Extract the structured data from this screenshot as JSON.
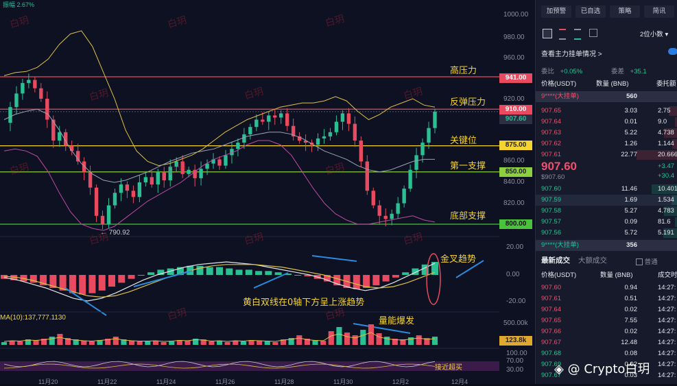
{
  "chart": {
    "top_left_label": "振幅 2.67%",
    "price_axis": [
      "1000.00",
      "980.00",
      "960.00",
      "940.00",
      "920.00",
      "900.00",
      "860.00",
      "840.00",
      "820.00"
    ],
    "price_tags": {
      "high_pressure": "941.00",
      "rebound_pressure": "910.00",
      "current": "907.60",
      "key_level": "875.00",
      "support1": "850.00",
      "bottom_support": "800.00"
    },
    "macd_axis": [
      "20.00",
      "0.00",
      "-20.00"
    ],
    "volume_axis": {
      "top": "500.00k",
      "tag": "123.8k"
    },
    "rsi_axis": [
      "100.00",
      "70.00",
      "30.00"
    ],
    "low_marker": "790.92",
    "annotations": {
      "high_pressure": "高压力",
      "rebound_pressure": "反弹压力",
      "key_level": "关键位",
      "support1": "第一支撑",
      "bottom_support": "底部支撑",
      "golden_cross": "金叉趋势",
      "macd_note": "黄白双线在0轴下方呈上涨趋势",
      "volume_burst": "量能爆发",
      "ma_label": "MA(10):137,777.1130",
      "overbought": "接近超买"
    },
    "watermark": "白玥",
    "brand_watermark": "Crypto白玥",
    "dates": [
      "11月20",
      "11月22",
      "11月24",
      "11月26",
      "11月28",
      "11月30",
      "12月2",
      "12月4"
    ],
    "colors": {
      "up": "#2bbf94",
      "down": "#e84a5f",
      "ma_yellow": "#e0c245",
      "ma_pink": "#c04aa8",
      "ma_grey": "#9ea3b5"
    }
  },
  "panel": {
    "buttons": [
      "加预警",
      "已自选",
      "策略",
      "简讯"
    ],
    "decimals": "2位小数",
    "view_orders": "查看主力挂单情况 >",
    "ratio_label": "委比",
    "ratio_value": "+0.05%",
    "diff_label": "委差",
    "diff_value": "+35.1",
    "headers": {
      "price": "价格(USDT)",
      "qty": "数量 (BNB)",
      "total": "委托额"
    },
    "big_sell": {
      "label": "9****(大挂单)",
      "value": "560"
    },
    "asks": [
      {
        "price": "907.65",
        "qty": "3.03",
        "total": "2.75"
      },
      {
        "price": "907.64",
        "qty": "0.01",
        "total": "9.0"
      },
      {
        "price": "907.63",
        "qty": "5.22",
        "total": "4.738"
      },
      {
        "price": "907.62",
        "qty": "1.26",
        "total": "1.144"
      },
      {
        "price": "907.61",
        "qty": "22.77",
        "total": "20.666"
      }
    ],
    "last_price": "907.60",
    "last_price_usd": "$907.60",
    "change1": "+3.47",
    "change2": "+30.4",
    "bids": [
      {
        "price": "907.60",
        "qty": "11.46",
        "total": "10.401"
      },
      {
        "price": "907.59",
        "qty": "1.69",
        "total": "1.534"
      },
      {
        "price": "907.58",
        "qty": "5.27",
        "total": "4.783"
      },
      {
        "price": "907.57",
        "qty": "0.09",
        "total": "81.6"
      },
      {
        "price": "907.56",
        "qty": "5.72",
        "total": "5.191"
      }
    ],
    "big_buy": {
      "label": "9****(大挂单)",
      "value": "356"
    },
    "tabs": [
      "最新成交",
      "大额成交"
    ],
    "checkbox_label": "普通",
    "trade_headers": {
      "price": "价格(USDT)",
      "qty": "数量 (BNB)",
      "time": "成交时"
    },
    "trades": [
      {
        "price": "907.60",
        "qty": "0.94",
        "time": "14:27:"
      },
      {
        "price": "907.61",
        "qty": "0.51",
        "time": "14:27:"
      },
      {
        "price": "907.64",
        "qty": "0.02",
        "time": "14:27:"
      },
      {
        "price": "907.65",
        "qty": "7.55",
        "time": "14:27:"
      },
      {
        "price": "907.66",
        "qty": "0.02",
        "time": "14:27:"
      },
      {
        "price": "907.67",
        "qty": "12.48",
        "time": "14:27:"
      },
      {
        "price": "907.68",
        "qty": "0.08",
        "time": "14:27:"
      },
      {
        "price": "907.69",
        "qty": "0.02",
        "time": "14:27:"
      },
      {
        "price": "907.67",
        "qty": "0.03",
        "time": "14:27:"
      }
    ]
  }
}
